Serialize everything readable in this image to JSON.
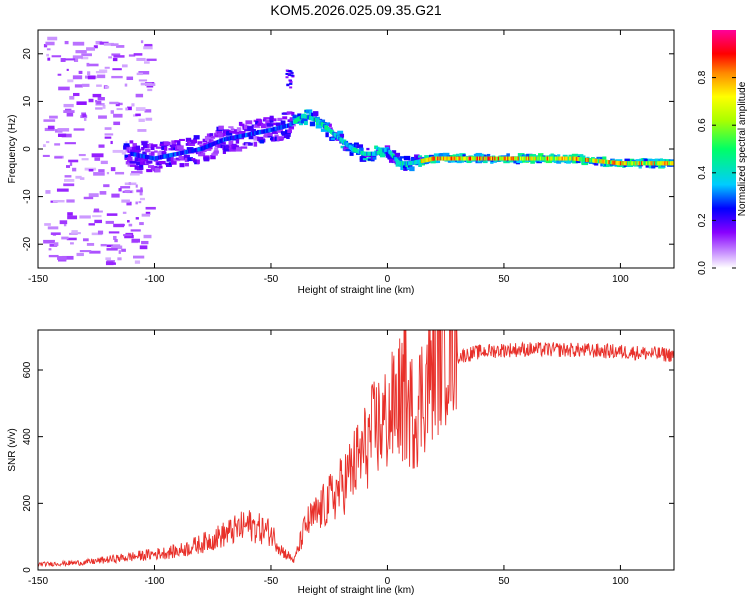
{
  "title": "KOM5.2026.025.09.35.G21",
  "colors": {
    "snr_line": "#e8302a",
    "axis": "#000000"
  },
  "chart_data": [
    {
      "type": "heatmap",
      "xlabel": "Height of straight line (km)",
      "ylabel": "Frequency (Hz)",
      "xlim": [
        -150,
        123
      ],
      "ylim": [
        -25,
        25
      ],
      "xticks": [
        -150,
        -100,
        -50,
        0,
        50,
        100
      ],
      "yticks": [
        -20,
        -10,
        0,
        10,
        20
      ],
      "ridge": [
        [
          -110,
          -1
        ],
        [
          -100,
          -2
        ],
        [
          -90,
          -1
        ],
        [
          -80,
          0
        ],
        [
          -70,
          2
        ],
        [
          -60,
          3
        ],
        [
          -50,
          4
        ],
        [
          -42,
          5
        ],
        [
          -36,
          7
        ],
        [
          -30,
          6
        ],
        [
          -25,
          4
        ],
        [
          -20,
          2
        ],
        [
          -15,
          0
        ],
        [
          -10,
          -1
        ],
        [
          -5,
          -1
        ],
        [
          0,
          0
        ],
        [
          5,
          -3
        ],
        [
          10,
          -3
        ],
        [
          20,
          -2
        ],
        [
          40,
          -2
        ],
        [
          60,
          -2
        ],
        [
          80,
          -2
        ],
        [
          100,
          -3
        ],
        [
          123,
          -3
        ]
      ],
      "colorbar": {
        "label": "Normalized spectral amplitude",
        "range": [
          0,
          1
        ],
        "ticks": [
          "0.0",
          "0.2",
          "0.4",
          "0.6",
          "0.8"
        ]
      }
    },
    {
      "type": "line",
      "xlabel": "Height of straight line (km)",
      "ylabel": "SNR (v/v)",
      "xlim": [
        -150,
        123
      ],
      "ylim": [
        0,
        720
      ],
      "xticks": [
        -150,
        -100,
        -50,
        0,
        50,
        100
      ],
      "yticks": [
        0,
        200,
        400,
        600
      ],
      "trend_x": [
        -150,
        -130,
        -110,
        -90,
        -80,
        -70,
        -60,
        -50,
        -45,
        -40,
        -35,
        -30,
        -20,
        -10,
        -5,
        0,
        5,
        8,
        12,
        15,
        20,
        25,
        30,
        40,
        50,
        60,
        80,
        100,
        123
      ],
      "trend_y": [
        15,
        20,
        35,
        50,
        70,
        95,
        120,
        100,
        50,
        25,
        120,
        150,
        220,
        320,
        380,
        400,
        460,
        430,
        420,
        470,
        550,
        610,
        640,
        655,
        660,
        662,
        660,
        655,
        645
      ]
    }
  ]
}
